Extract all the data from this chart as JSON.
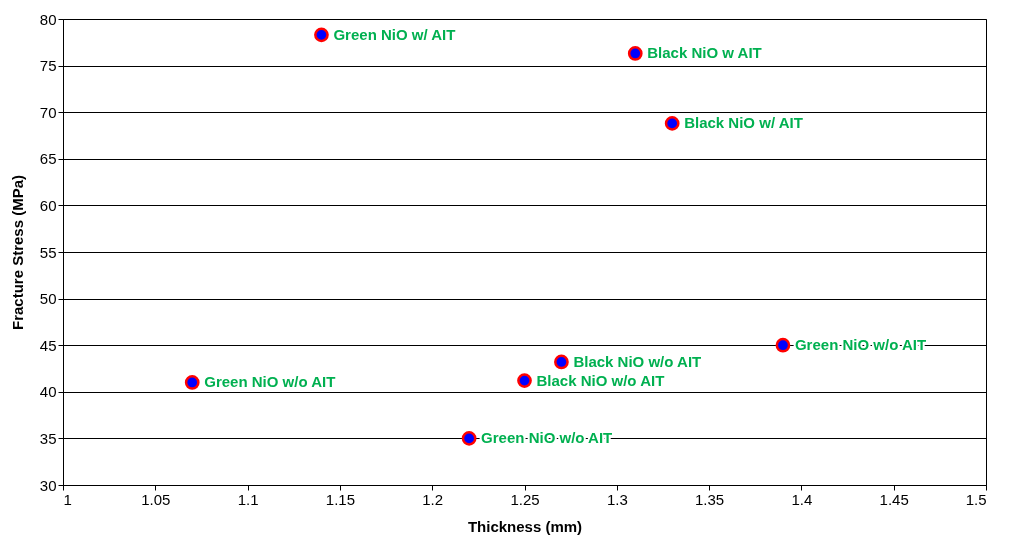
{
  "chart_data": {
    "type": "scatter",
    "xlabel": "Thickness (mm)",
    "ylabel": "Fracture Stress (MPa)",
    "x": [
      1.14,
      1.31,
      1.33,
      1.39,
      1.27,
      1.07,
      1.25,
      1.22
    ],
    "series": [
      {
        "color": "#0000ff",
        "values": [
          78.3,
          76.3,
          68.8,
          45,
          43.2,
          41,
          41.2,
          35
        ]
      }
    ],
    "xlim": [
      1,
      1.5
    ],
    "xticks": [
      1,
      1.05,
      1.1,
      1.15,
      1.2,
      1.25,
      1.3,
      1.35,
      1.4,
      1.45,
      1.5
    ],
    "ylim": [
      30,
      80
    ],
    "yticks": [
      30,
      35,
      40,
      45,
      50,
      55,
      60,
      65,
      70,
      75,
      80
    ],
    "grid": "y",
    "marker": "circle",
    "annotations": [
      {
        "text": "Green NiO w/ AIT",
        "x": 1.14,
        "y": 78.3
      },
      {
        "text": "Black NiO w AIT",
        "x": 1.31,
        "y": 76.3
      },
      {
        "text": "Black NiO w/ AIT",
        "x": 1.33,
        "y": 68.8
      },
      {
        "text": "Green NiO w/o AIT",
        "x": 1.39,
        "y": 45
      },
      {
        "text": "Black NiO w/o AIT",
        "x": 1.27,
        "y": 43.2
      },
      {
        "text": "Green NiO w/o AIT",
        "x": 1.07,
        "y": 41
      },
      {
        "text": "Black NiO w/o AIT",
        "x": 1.25,
        "y": 41.2
      },
      {
        "text": "Green NiO w/o AIT",
        "x": 1.22,
        "y": 35
      }
    ]
  }
}
